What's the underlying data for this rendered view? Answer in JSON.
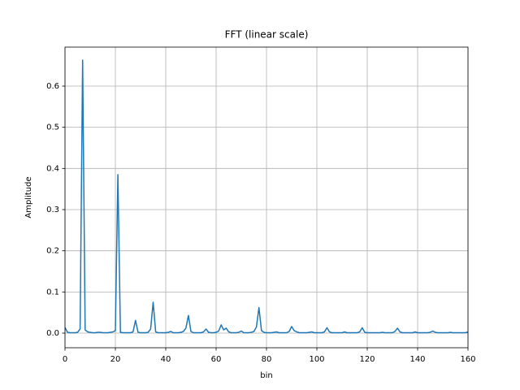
{
  "chart_data": {
    "type": "line",
    "title": "FFT (linear scale)",
    "x_label": "bin",
    "y_label": "Amplitude",
    "x": [
      0,
      1,
      2,
      3,
      4,
      5,
      6,
      7,
      8,
      9,
      10,
      11,
      12,
      13,
      14,
      15,
      16,
      17,
      18,
      19,
      20,
      21,
      22,
      23,
      24,
      25,
      26,
      27,
      28,
      29,
      30,
      31,
      32,
      33,
      34,
      35,
      36,
      37,
      38,
      39,
      40,
      41,
      42,
      43,
      44,
      45,
      46,
      47,
      48,
      49,
      50,
      51,
      52,
      53,
      54,
      55,
      56,
      57,
      58,
      59,
      60,
      61,
      62,
      63,
      64,
      65,
      66,
      67,
      68,
      69,
      70,
      71,
      72,
      73,
      74,
      75,
      76,
      77,
      78,
      79,
      80,
      81,
      82,
      83,
      84,
      85,
      86,
      87,
      88,
      89,
      90,
      91,
      92,
      93,
      94,
      95,
      96,
      97,
      98,
      99,
      100,
      101,
      102,
      103,
      104,
      105,
      106,
      107,
      108,
      109,
      110,
      111,
      112,
      113,
      114,
      115,
      116,
      117,
      118,
      119,
      120,
      121,
      122,
      123,
      124,
      125,
      126,
      127,
      128,
      129,
      130,
      131,
      132,
      133,
      134,
      135,
      136,
      137,
      138,
      139,
      140,
      141,
      142,
      143,
      144,
      145,
      146,
      147,
      148,
      149,
      150,
      151,
      152,
      153,
      154,
      155,
      156,
      157,
      158,
      159,
      160
    ],
    "series": [
      {
        "color": "#1f77b4",
        "values": [
          0.014,
          0.002,
          0.001,
          0.001,
          0.001,
          0.002,
          0.01,
          0.663,
          0.008,
          0.003,
          0.002,
          0.001,
          0.001,
          0.002,
          0.002,
          0.001,
          0.001,
          0.001,
          0.002,
          0.003,
          0.006,
          0.385,
          0.002,
          0.001,
          0.001,
          0.001,
          0.001,
          0.003,
          0.031,
          0.002,
          0.001,
          0.001,
          0.001,
          0.002,
          0.01,
          0.075,
          0.003,
          0.001,
          0.001,
          0.001,
          0.001,
          0.002,
          0.004,
          0.001,
          0.001,
          0.001,
          0.002,
          0.004,
          0.012,
          0.043,
          0.004,
          0.001,
          0.001,
          0.001,
          0.001,
          0.003,
          0.01,
          0.002,
          0.001,
          0.001,
          0.002,
          0.005,
          0.02,
          0.008,
          0.012,
          0.003,
          0.001,
          0.001,
          0.001,
          0.002,
          0.005,
          0.001,
          0.001,
          0.001,
          0.002,
          0.004,
          0.015,
          0.062,
          0.006,
          0.002,
          0.001,
          0.001,
          0.001,
          0.002,
          0.003,
          0.001,
          0.001,
          0.001,
          0.001,
          0.004,
          0.016,
          0.006,
          0.003,
          0.001,
          0.001,
          0.001,
          0.001,
          0.002,
          0.003,
          0.001,
          0.001,
          0.001,
          0.001,
          0.003,
          0.013,
          0.003,
          0.001,
          0.001,
          0.001,
          0.001,
          0.001,
          0.003,
          0.001,
          0.001,
          0.001,
          0.001,
          0.001,
          0.003,
          0.013,
          0.002,
          0.001,
          0.001,
          0.001,
          0.001,
          0.001,
          0.001,
          0.002,
          0.001,
          0.001,
          0.001,
          0.001,
          0.004,
          0.012,
          0.003,
          0.001,
          0.001,
          0.001,
          0.001,
          0.001,
          0.003,
          0.001,
          0.001,
          0.001,
          0.001,
          0.001,
          0.002,
          0.005,
          0.002,
          0.001,
          0.001,
          0.001,
          0.001,
          0.001,
          0.002,
          0.001,
          0.001,
          0.001,
          0.001,
          0.001,
          0.001,
          0.003
        ]
      }
    ],
    "xlim": [
      0,
      160
    ],
    "ylim": [
      -0.0355,
      0.6947
    ],
    "xticks": [
      0,
      20,
      40,
      60,
      80,
      100,
      120,
      140,
      160
    ],
    "yticks": [
      {
        "value": 0,
        "label": "0.0"
      },
      0.1,
      0.2,
      0.3,
      0.4,
      0.5,
      0.6
    ],
    "grid": true
  }
}
